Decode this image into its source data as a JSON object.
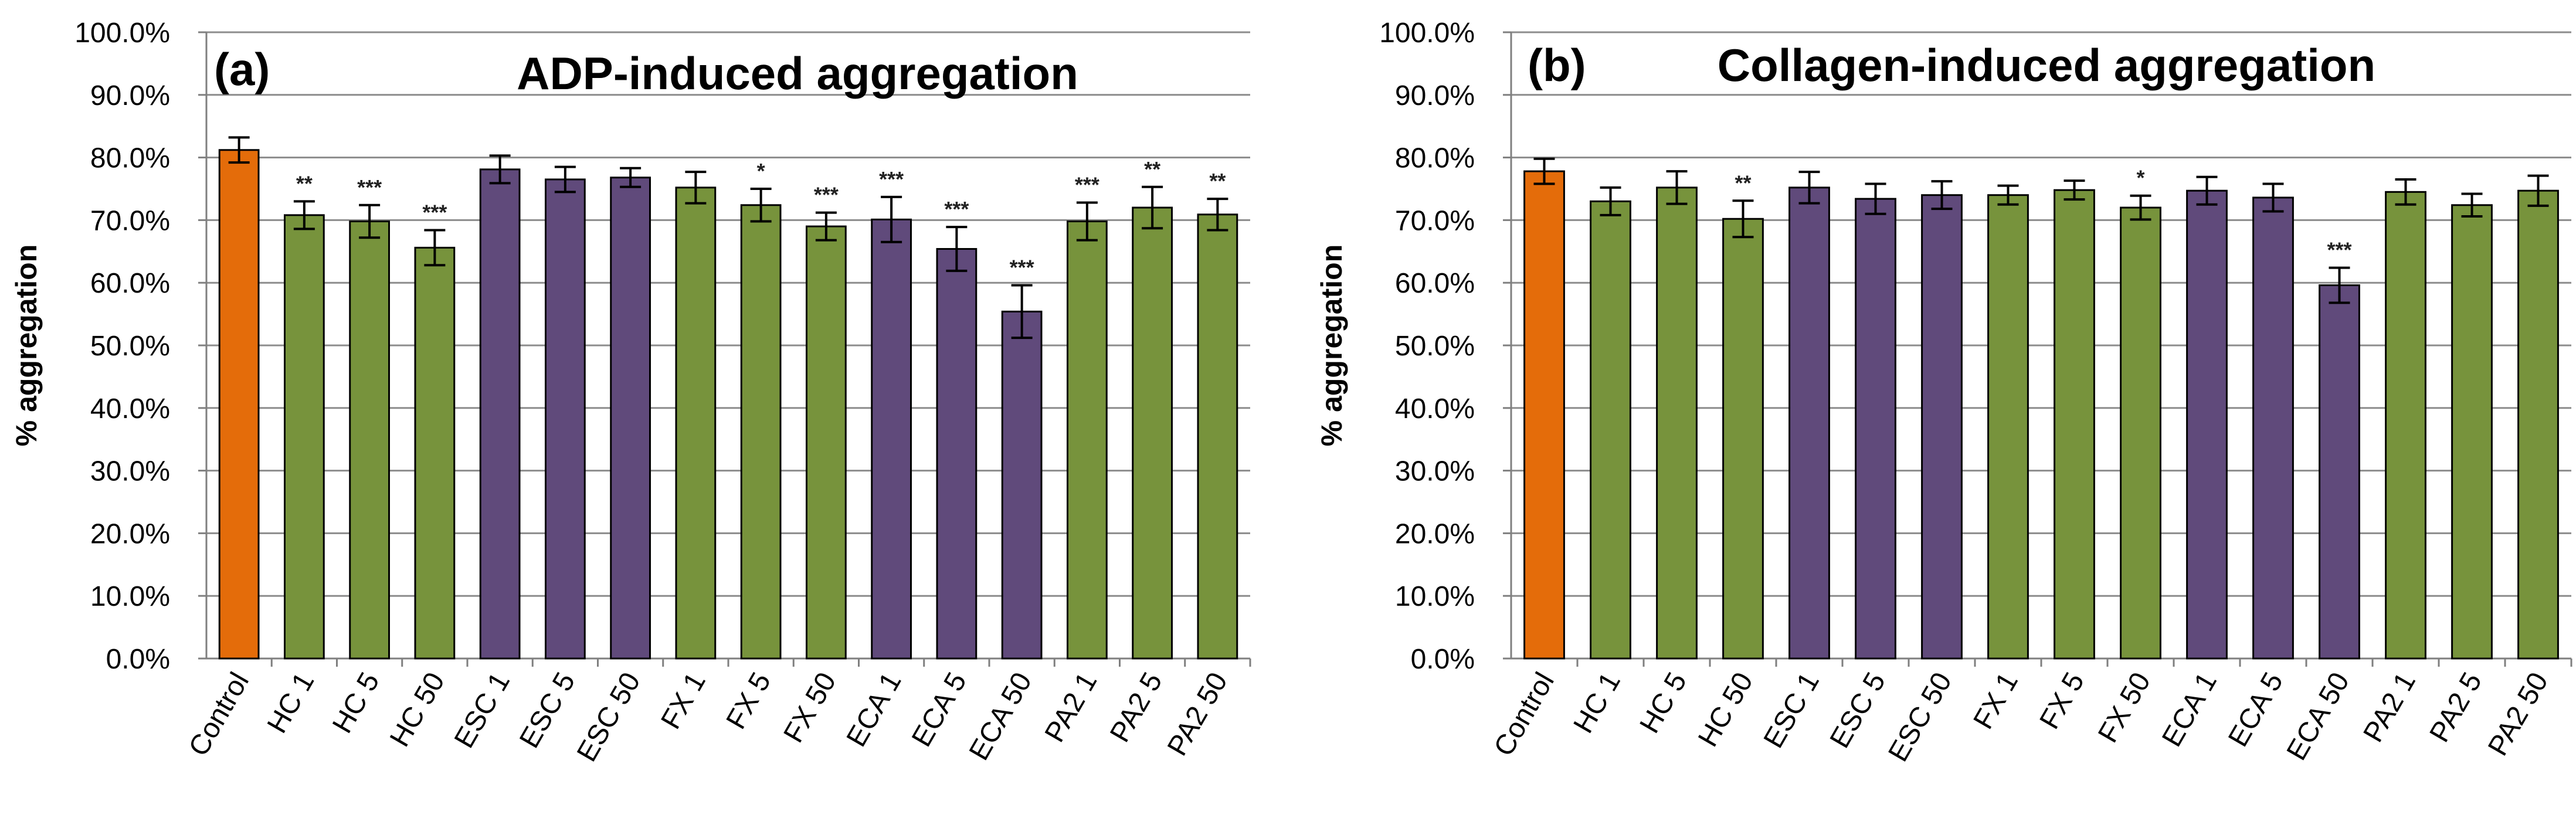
{
  "chart_data": [
    {
      "type": "bar",
      "panel_label": "(a)",
      "title": "ADP-induced aggregation",
      "xlabel": "",
      "ylabel": "% aggregation",
      "ylim": [
        0,
        100
      ],
      "yticks": [
        "0.0%",
        "10.0%",
        "20.0%",
        "30.0%",
        "40.0%",
        "50.0%",
        "60.0%",
        "70.0%",
        "80.0%",
        "90.0%",
        "100.0%"
      ],
      "grid": true,
      "categories": [
        "Control",
        "HC 1",
        "HC 5",
        "HC 50",
        "ESC 1",
        "ESC 5",
        "ESC 50",
        "FX 1",
        "FX 5",
        "FX 50",
        "ECA 1",
        "ECA 5",
        "ECA 50",
        "PA2 1",
        "PA2 5",
        "PA2 50"
      ],
      "values": [
        81.2,
        70.8,
        69.8,
        65.6,
        78.1,
        76.5,
        76.8,
        75.2,
        72.4,
        69.0,
        70.1,
        65.4,
        55.4,
        69.8,
        72.0,
        70.9
      ],
      "errors": [
        2.0,
        2.2,
        2.6,
        2.8,
        2.2,
        2.0,
        1.5,
        2.5,
        2.6,
        2.2,
        3.6,
        3.5,
        4.2,
        3.0,
        3.3,
        2.5
      ],
      "significance": [
        "",
        "**",
        "***",
        "***",
        "",
        "",
        "",
        "",
        "*",
        "***",
        "***",
        "***",
        "***",
        "***",
        "**",
        "**"
      ],
      "bar_colors": [
        "#e46c0a",
        "#77933c",
        "#77933c",
        "#77933c",
        "#604a7b",
        "#604a7b",
        "#604a7b",
        "#77933c",
        "#77933c",
        "#77933c",
        "#604a7b",
        "#604a7b",
        "#604a7b",
        "#77933c",
        "#77933c",
        "#77933c"
      ]
    },
    {
      "type": "bar",
      "panel_label": "(b)",
      "title": "Collagen-induced aggregation",
      "xlabel": "",
      "ylabel": "% aggregation",
      "ylim": [
        0,
        100
      ],
      "yticks": [
        "0.0%",
        "10.0%",
        "20.0%",
        "30.0%",
        "40.0%",
        "50.0%",
        "60.0%",
        "70.0%",
        "80.0%",
        "90.0%",
        "100.0%"
      ],
      "grid": true,
      "categories": [
        "Control",
        "HC 1",
        "HC 5",
        "HC 50",
        "ESC 1",
        "ESC 5",
        "ESC 50",
        "FX 1",
        "FX 5",
        "FX 50",
        "ECA 1",
        "ECA 5",
        "ECA 50",
        "PA2 1",
        "PA2 5",
        "PA2 50"
      ],
      "values": [
        77.8,
        73.0,
        75.2,
        70.2,
        75.2,
        73.4,
        74.0,
        74.0,
        74.8,
        72.0,
        74.7,
        73.6,
        59.6,
        74.5,
        72.4,
        74.7
      ],
      "errors": [
        2.0,
        2.2,
        2.6,
        2.9,
        2.5,
        2.4,
        2.2,
        1.5,
        1.5,
        1.9,
        2.2,
        2.2,
        2.8,
        2.0,
        1.8,
        2.4
      ],
      "significance": [
        "",
        "",
        "",
        "**",
        "",
        "",
        "",
        "",
        "",
        "*",
        "",
        "",
        "***",
        "",
        "",
        ""
      ],
      "bar_colors": [
        "#e46c0a",
        "#77933c",
        "#77933c",
        "#77933c",
        "#604a7b",
        "#604a7b",
        "#604a7b",
        "#77933c",
        "#77933c",
        "#77933c",
        "#604a7b",
        "#604a7b",
        "#604a7b",
        "#77933c",
        "#77933c",
        "#77933c"
      ]
    }
  ]
}
